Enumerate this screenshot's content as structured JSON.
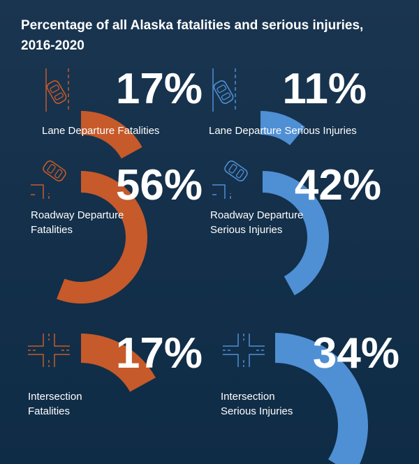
{
  "title": "Percentage of all Alaska fatalities and serious injuries, 2016-2020",
  "colors": {
    "fatality": "#c65a2a",
    "injury": "#4f8fd4",
    "background": "#13304a"
  },
  "icons": {
    "lane": "car-lane-departure-icon",
    "roadway": "car-roadway-departure-icon",
    "intersection": "intersection-icon"
  },
  "chart_data": {
    "type": "pie",
    "title": "Percentage of all Alaska fatalities and serious injuries, 2016-2020",
    "unit": "%",
    "series": [
      {
        "name": "Lane Departure Fatalities",
        "label_lines": [
          "Lane Departure Fatalities"
        ],
        "value": 17,
        "display": "17%",
        "category": "fatality"
      },
      {
        "name": "Lane Departure Serious Injuries",
        "label_lines": [
          "Lane Departure Serious Injuries"
        ],
        "value": 11,
        "display": "11%",
        "category": "injury"
      },
      {
        "name": "Roadway Departure Fatalities",
        "label_lines": [
          "Roadway Departure",
          "Fatalities"
        ],
        "value": 56,
        "display": "56%",
        "category": "fatality"
      },
      {
        "name": "Roadway Departure Serious Injuries",
        "label_lines": [
          "Roadway Departure",
          "Serious Injuries"
        ],
        "value": 42,
        "display": "42%",
        "category": "injury"
      },
      {
        "name": "Intersection Fatalities",
        "label_lines": [
          "Intersection",
          "Fatalities"
        ],
        "value": 17,
        "display": "17%",
        "category": "fatality"
      },
      {
        "name": "Intersection Serious Injuries",
        "label_lines": [
          "Intersection",
          "Serious Injuries"
        ],
        "value": 34,
        "display": "34%",
        "category": "injury"
      }
    ]
  }
}
